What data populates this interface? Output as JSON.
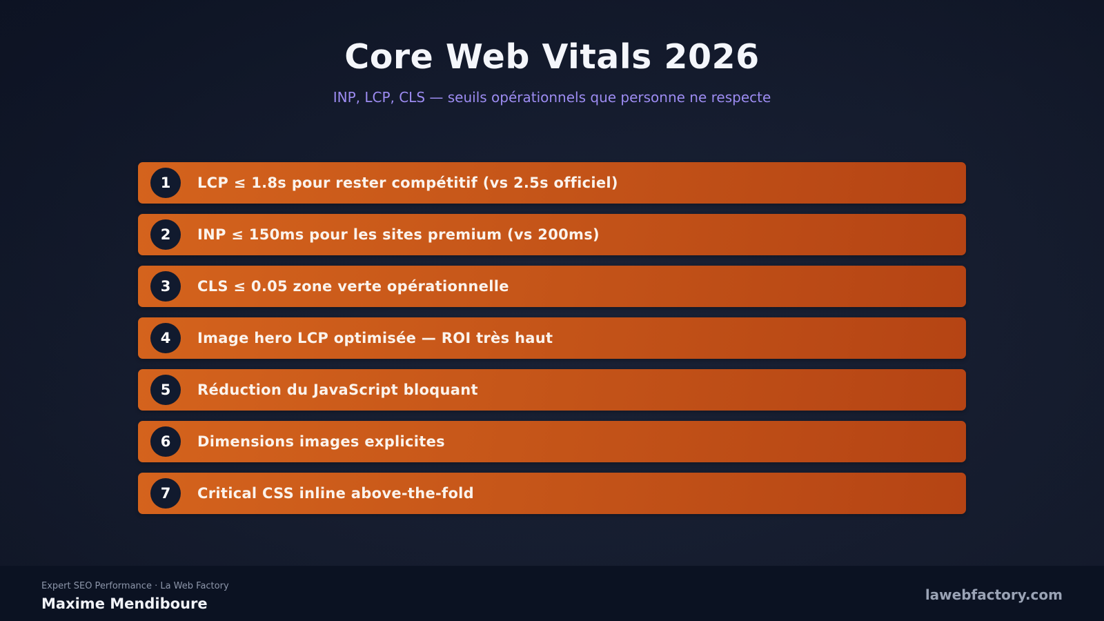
{
  "header": {
    "title": "Core Web Vitals 2026",
    "subtitle": "INP, LCP, CLS — seuils opérationnels que personne ne respecte"
  },
  "items": [
    {
      "number": "1",
      "text": "LCP ≤ 1.8s pour rester compétitif (vs 2.5s officiel)"
    },
    {
      "number": "2",
      "text": "INP ≤ 150ms pour les sites premium (vs 200ms)"
    },
    {
      "number": "3",
      "text": "CLS ≤ 0.05 zone verte opérationnelle"
    },
    {
      "number": "4",
      "text": "Image hero LCP optimisée — ROI très haut"
    },
    {
      "number": "5",
      "text": "Réduction du JavaScript bloquant"
    },
    {
      "number": "6",
      "text": "Dimensions images explicites"
    },
    {
      "number": "7",
      "text": "Critical CSS inline above-the-fold"
    }
  ],
  "footer": {
    "role": "Expert SEO Performance · La Web Factory",
    "name": "Maxime Mendiboure",
    "website": "lawebfactory.com"
  },
  "colors": {
    "background": "#151c2e",
    "item_accent": "#c65619",
    "badge": "#111a2e",
    "subtitle": "#9d8cf2",
    "footer": "#0b1222"
  }
}
